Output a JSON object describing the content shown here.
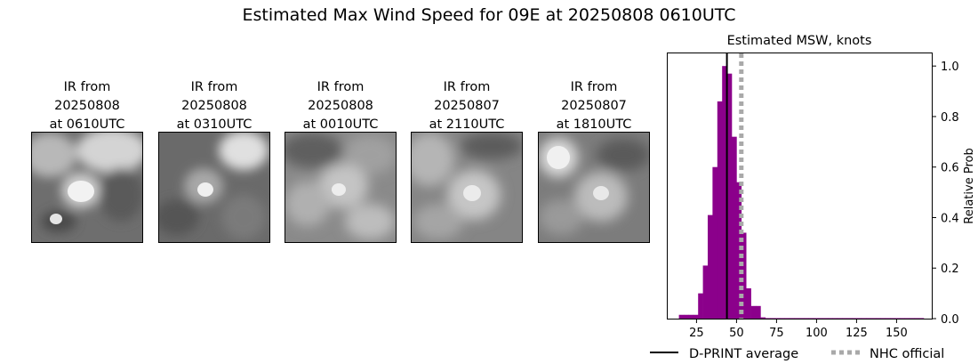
{
  "figure": {
    "suptitle": "Estimated Max Wind Speed for 09E at 20250808 0610UTC"
  },
  "ir_panels": [
    {
      "line1": "IR from",
      "line2": "20250808",
      "line3": "at 0610UTC"
    },
    {
      "line1": "IR from",
      "line2": "20250808",
      "line3": "at 0310UTC"
    },
    {
      "line1": "IR from",
      "line2": "20250808",
      "line3": "at 0010UTC"
    },
    {
      "line1": "IR from",
      "line2": "20250807",
      "line3": "at 2110UTC"
    },
    {
      "line1": "IR from",
      "line2": "20250807",
      "line3": "at 1810UTC"
    }
  ],
  "chart_data": {
    "type": "bar",
    "title": "Estimated MSW, knots",
    "xlabel": "",
    "ylabel": "Relative Prob",
    "xlim": [
      7,
      172
    ],
    "ylim": [
      0,
      1.05
    ],
    "xticks": [
      25,
      50,
      75,
      100,
      125,
      150
    ],
    "yticks": [
      0.0,
      0.2,
      0.4,
      0.6,
      0.8,
      1.0
    ],
    "y_axis_side": "right",
    "bin_width": 3,
    "bar_color": "#8b008b",
    "bins": [
      {
        "x0": 14,
        "value": 0.015
      },
      {
        "x0": 17,
        "value": 0.015
      },
      {
        "x0": 20,
        "value": 0.015
      },
      {
        "x0": 23,
        "value": 0.015
      },
      {
        "x0": 26,
        "value": 0.1
      },
      {
        "x0": 29,
        "value": 0.21
      },
      {
        "x0": 32,
        "value": 0.41
      },
      {
        "x0": 35,
        "value": 0.6
      },
      {
        "x0": 38,
        "value": 0.86
      },
      {
        "x0": 41,
        "value": 1.0
      },
      {
        "x0": 44,
        "value": 0.97
      },
      {
        "x0": 47,
        "value": 0.72
      },
      {
        "x0": 50,
        "value": 0.54
      },
      {
        "x0": 53,
        "value": 0.34
      },
      {
        "x0": 56,
        "value": 0.12
      },
      {
        "x0": 59,
        "value": 0.05
      },
      {
        "x0": 62,
        "value": 0.05
      },
      {
        "x0": 65,
        "value": 0.005
      },
      {
        "x0": 68,
        "value": 0.002
      },
      {
        "x0": 71,
        "value": 0.002
      },
      {
        "x0": 74,
        "value": 0.002
      },
      {
        "x0": 77,
        "value": 0.002
      },
      {
        "x0": 80,
        "value": 0.002
      },
      {
        "x0": 83,
        "value": 0.002
      },
      {
        "x0": 86,
        "value": 0.002
      },
      {
        "x0": 89,
        "value": 0.002
      },
      {
        "x0": 92,
        "value": 0.002
      },
      {
        "x0": 95,
        "value": 0.002
      },
      {
        "x0": 98,
        "value": 0.002
      },
      {
        "x0": 101,
        "value": 0.002
      },
      {
        "x0": 104,
        "value": 0.002
      },
      {
        "x0": 107,
        "value": 0.002
      },
      {
        "x0": 110,
        "value": 0.002
      },
      {
        "x0": 113,
        "value": 0.002
      },
      {
        "x0": 116,
        "value": 0.002
      },
      {
        "x0": 119,
        "value": 0.002
      },
      {
        "x0": 122,
        "value": 0.002
      },
      {
        "x0": 125,
        "value": 0.002
      },
      {
        "x0": 128,
        "value": 0.002
      },
      {
        "x0": 131,
        "value": 0.002
      },
      {
        "x0": 134,
        "value": 0.002
      },
      {
        "x0": 137,
        "value": 0.002
      },
      {
        "x0": 140,
        "value": 0.002
      },
      {
        "x0": 143,
        "value": 0.002
      },
      {
        "x0": 146,
        "value": 0.002
      },
      {
        "x0": 149,
        "value": 0.002
      },
      {
        "x0": 152,
        "value": 0.002
      },
      {
        "x0": 155,
        "value": 0.002
      },
      {
        "x0": 158,
        "value": 0.002
      },
      {
        "x0": 161,
        "value": 0.002
      },
      {
        "x0": 164,
        "value": 0.002
      }
    ],
    "lines": [
      {
        "name": "D-PRINT average",
        "x": 44,
        "color": "#000000",
        "style": "solid"
      },
      {
        "name": "NHC official",
        "x": 53,
        "color": "#a9a9a9",
        "style": "dotted"
      }
    ],
    "legend_position": "bottom"
  }
}
